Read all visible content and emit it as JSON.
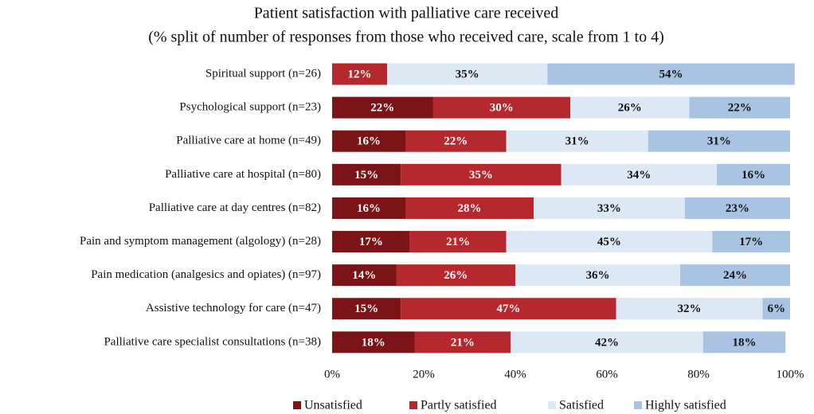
{
  "chart_data": {
    "type": "stacked_bar_horizontal",
    "title": "Patient satisfaction with palliative care received",
    "subtitle": "(% split of number of responses from those who received care, scale from 1 to 4)",
    "categories": [
      "Spiritual support  (n=26)",
      "Psychological support (n=23)",
      "Palliative care at home (n=49)",
      "Palliative care at hospital (n=80)",
      "Palliative care at day centres (n=82)",
      "Pain and symptom management (algology) (n=28)",
      "Pain medication (analgesics and opiates) (n=97)",
      "Assistive technology for care (n=47)",
      "Palliative care specialist consultations (n=38)"
    ],
    "series": [
      {
        "name": "Unsatisfied",
        "color": "#7b1416",
        "label_color": "#ffffff",
        "values": [
          0,
          22,
          16,
          15,
          16,
          17,
          14,
          15,
          18
        ],
        "value_labels": [
          null,
          "22%",
          "16%",
          "15%",
          "16%",
          "17%",
          "14%",
          "15%",
          "18%"
        ]
      },
      {
        "name": "Partly satisfied",
        "color": "#b5282e",
        "label_color": "#ffffff",
        "values": [
          12,
          30,
          22,
          35,
          28,
          21,
          26,
          47,
          21
        ],
        "value_labels": [
          "12%",
          "30%",
          "22%",
          "35%",
          "28%",
          "21%",
          "26%",
          "47%",
          "21%"
        ]
      },
      {
        "name": "Satisfied",
        "color": "#dce8f4",
        "label_color": "#111111",
        "values": [
          35,
          26,
          31,
          34,
          33,
          45,
          36,
          32,
          42
        ],
        "value_labels": [
          "35%",
          "26%",
          "31%",
          "34%",
          "33%",
          "45%",
          "36%",
          "32%",
          "42%"
        ]
      },
      {
        "name": "Highly satisfied",
        "color": "#a9c4e2",
        "label_color": "#111111",
        "values": [
          54,
          22,
          31,
          16,
          23,
          17,
          24,
          6,
          18
        ],
        "value_labels": [
          "54%",
          "22%",
          "31%",
          "16%",
          "23%",
          "17%",
          "24%",
          "6%",
          "18%"
        ]
      }
    ],
    "xlim": [
      0,
      100
    ],
    "xticks": [
      {
        "value": 0,
        "label": "0%"
      },
      {
        "value": 20,
        "label": "20%"
      },
      {
        "value": 40,
        "label": "40%"
      },
      {
        "value": 60,
        "label": "60%"
      },
      {
        "value": 80,
        "label": "80%"
      },
      {
        "value": 100,
        "label": "100%"
      }
    ],
    "legend": "bottom"
  }
}
